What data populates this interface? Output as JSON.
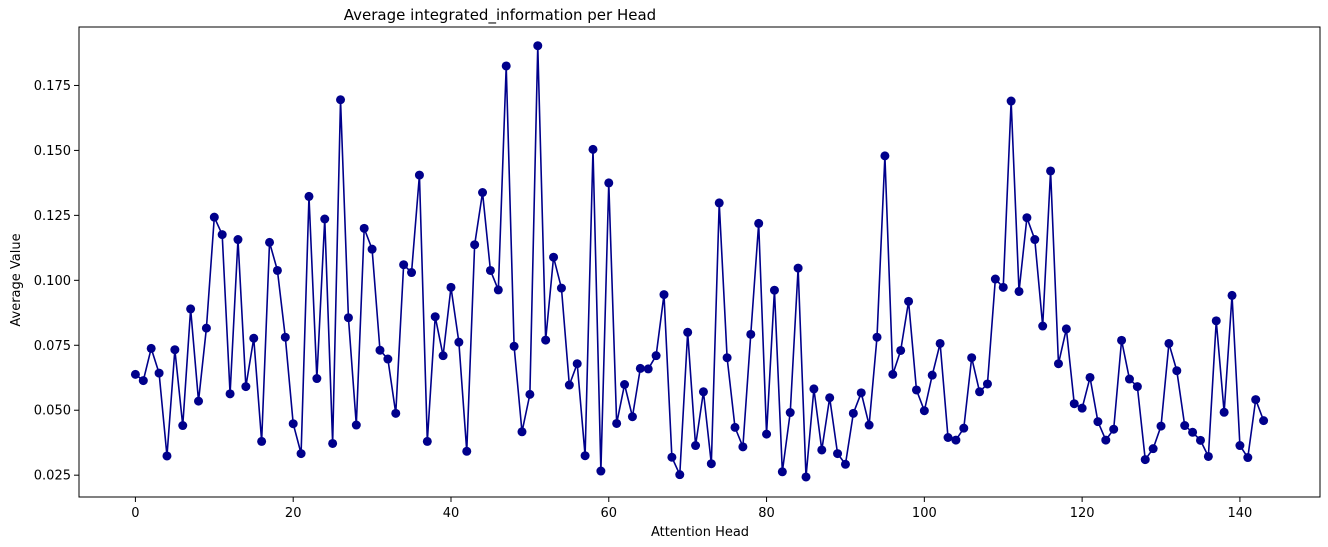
{
  "chart_data": {
    "type": "line",
    "title": "Average integrated_information per Head",
    "xlabel": "Attention Head",
    "ylabel": "Average Value",
    "xlim": [
      -7.15,
      150.15
    ],
    "ylim": [
      0.0166,
      0.1975
    ],
    "xticks": [
      0,
      20,
      40,
      60,
      80,
      100,
      120,
      140
    ],
    "yticks": [
      0.025,
      0.05,
      0.075,
      0.1,
      0.125,
      0.15,
      0.175
    ],
    "ytick_labels": [
      "0.025",
      "0.050",
      "0.075",
      "0.100",
      "0.125",
      "0.150",
      "0.175"
    ],
    "grid": false,
    "marker": "circle",
    "color": "#00008b",
    "series": [
      {
        "x": [
          0,
          1,
          2,
          3,
          4,
          5,
          6,
          7,
          8,
          9,
          10,
          11,
          12,
          13,
          14,
          15,
          16,
          17,
          18,
          19,
          20,
          21,
          22,
          23,
          24,
          25,
          26,
          27,
          28,
          29,
          30,
          31,
          32,
          33,
          34,
          35,
          36,
          37,
          38,
          39,
          40,
          41,
          42,
          43,
          44,
          45,
          46,
          47,
          48,
          49,
          50,
          51,
          52,
          53,
          54,
          55,
          56,
          57,
          58,
          59,
          60,
          61,
          62,
          63,
          64,
          65,
          66,
          67,
          68,
          69,
          70,
          71,
          72,
          73,
          74,
          75,
          76,
          77,
          78,
          79,
          80,
          81,
          82,
          83,
          84,
          85,
          86,
          87,
          88,
          89,
          90,
          91,
          92,
          93,
          94,
          95,
          96,
          97,
          98,
          99,
          100,
          101,
          102,
          103,
          104,
          105,
          106,
          107,
          108,
          109,
          110,
          111,
          112,
          113,
          114,
          115,
          116,
          117,
          118,
          119,
          120,
          121,
          122,
          123,
          124,
          125,
          126,
          127,
          128,
          129,
          130,
          131,
          132,
          133,
          134,
          135,
          136,
          137,
          138,
          139,
          140,
          141,
          142,
          143
        ],
        "y": [
          0.0638,
          0.0614,
          0.0738,
          0.0643,
          0.0324,
          0.0733,
          0.0441,
          0.089,
          0.0535,
          0.0816,
          0.1243,
          0.1176,
          0.0563,
          0.1157,
          0.0591,
          0.0777,
          0.038,
          0.1146,
          0.1038,
          0.0781,
          0.0448,
          0.0333,
          0.1323,
          0.0622,
          0.1236,
          0.0372,
          0.1695,
          0.0856,
          0.0443,
          0.12,
          0.112,
          0.0731,
          0.0697,
          0.0488,
          0.106,
          0.103,
          0.1405,
          0.038,
          0.086,
          0.071,
          0.0973,
          0.0762,
          0.0342,
          0.1137,
          0.1338,
          0.1038,
          0.0963,
          0.1825,
          0.0746,
          0.0417,
          0.0561,
          0.1903,
          0.077,
          0.1089,
          0.097,
          0.0597,
          0.0679,
          0.0325,
          0.1504,
          0.0266,
          0.1375,
          0.0449,
          0.0599,
          0.0475,
          0.0661,
          0.0659,
          0.071,
          0.0945,
          0.0319,
          0.0252,
          0.08,
          0.0364,
          0.0571,
          0.0294,
          0.1298,
          0.0702,
          0.0434,
          0.0359,
          0.0792,
          0.1219,
          0.0408,
          0.0962,
          0.0263,
          0.0491,
          0.1047,
          0.0243,
          0.0582,
          0.0347,
          0.0548,
          0.0333,
          0.0292,
          0.0488,
          0.0567,
          0.0443,
          0.0781,
          0.1479,
          0.0638,
          0.073,
          0.0919,
          0.0578,
          0.0498,
          0.0635,
          0.0757,
          0.0395,
          0.0385,
          0.0431,
          0.0702,
          0.0571,
          0.0601,
          0.1005,
          0.0973,
          0.169,
          0.0957,
          0.1241,
          0.1157,
          0.0824,
          0.1421,
          0.0679,
          0.0813,
          0.0525,
          0.0508,
          0.0626,
          0.0456,
          0.0385,
          0.0427,
          0.0769,
          0.062,
          0.0591,
          0.031,
          0.0352,
          0.0439,
          0.0757,
          0.0652,
          0.0441,
          0.0415,
          0.0384,
          0.0322,
          0.0844,
          0.0492,
          0.0942,
          0.0364,
          0.0318,
          0.0541,
          0.046
        ]
      }
    ]
  }
}
